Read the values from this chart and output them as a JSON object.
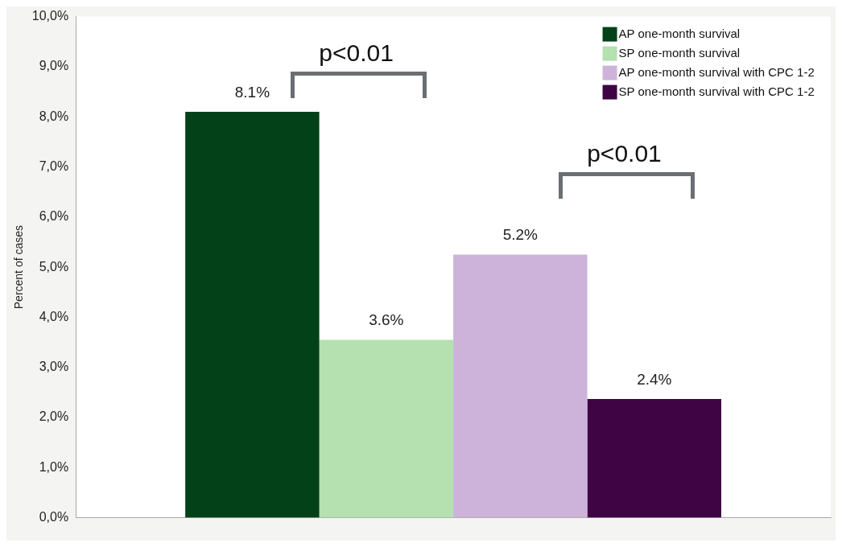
{
  "chart_data": {
    "type": "bar",
    "ylabel": "Percent of cases",
    "categories": [
      null
    ],
    "series": [
      {
        "name": "AP one-month survival",
        "color": "#034119",
        "values": [
          8.1
        ],
        "value_labels": [
          "8.1%"
        ]
      },
      {
        "name": "SP one-month survival",
        "color": "#b5e0b0",
        "values": [
          3.55
        ],
        "value_labels": [
          "3.6%"
        ]
      },
      {
        "name": "AP one-month survival with CPC 1-2",
        "color": "#cdb3da",
        "values": [
          5.25
        ],
        "value_labels": [
          "5.2%"
        ]
      },
      {
        "name": "SP one-month survival with CPC 1-2",
        "color": "#3f0443",
        "values": [
          2.37
        ],
        "value_labels": [
          "2.4%"
        ]
      }
    ],
    "ylim": [
      0,
      10
    ],
    "yticks": [
      {
        "value": 0,
        "label": "0,0%"
      },
      {
        "value": 1,
        "label": "1,0%"
      },
      {
        "value": 2,
        "label": "2,0%"
      },
      {
        "value": 3,
        "label": "3,0%"
      },
      {
        "value": 4,
        "label": "4,0%"
      },
      {
        "value": 5,
        "label": "5,0%"
      },
      {
        "value": 6,
        "label": "6,0%"
      },
      {
        "value": 7,
        "label": "7,0%"
      },
      {
        "value": 8,
        "label": "8,0%"
      },
      {
        "value": 9,
        "label": "9,0%"
      },
      {
        "value": 10,
        "label": "10,0%"
      }
    ],
    "annotations": [
      "p<0.01",
      "p<0.01"
    ],
    "grid": false,
    "legend": "top right"
  }
}
